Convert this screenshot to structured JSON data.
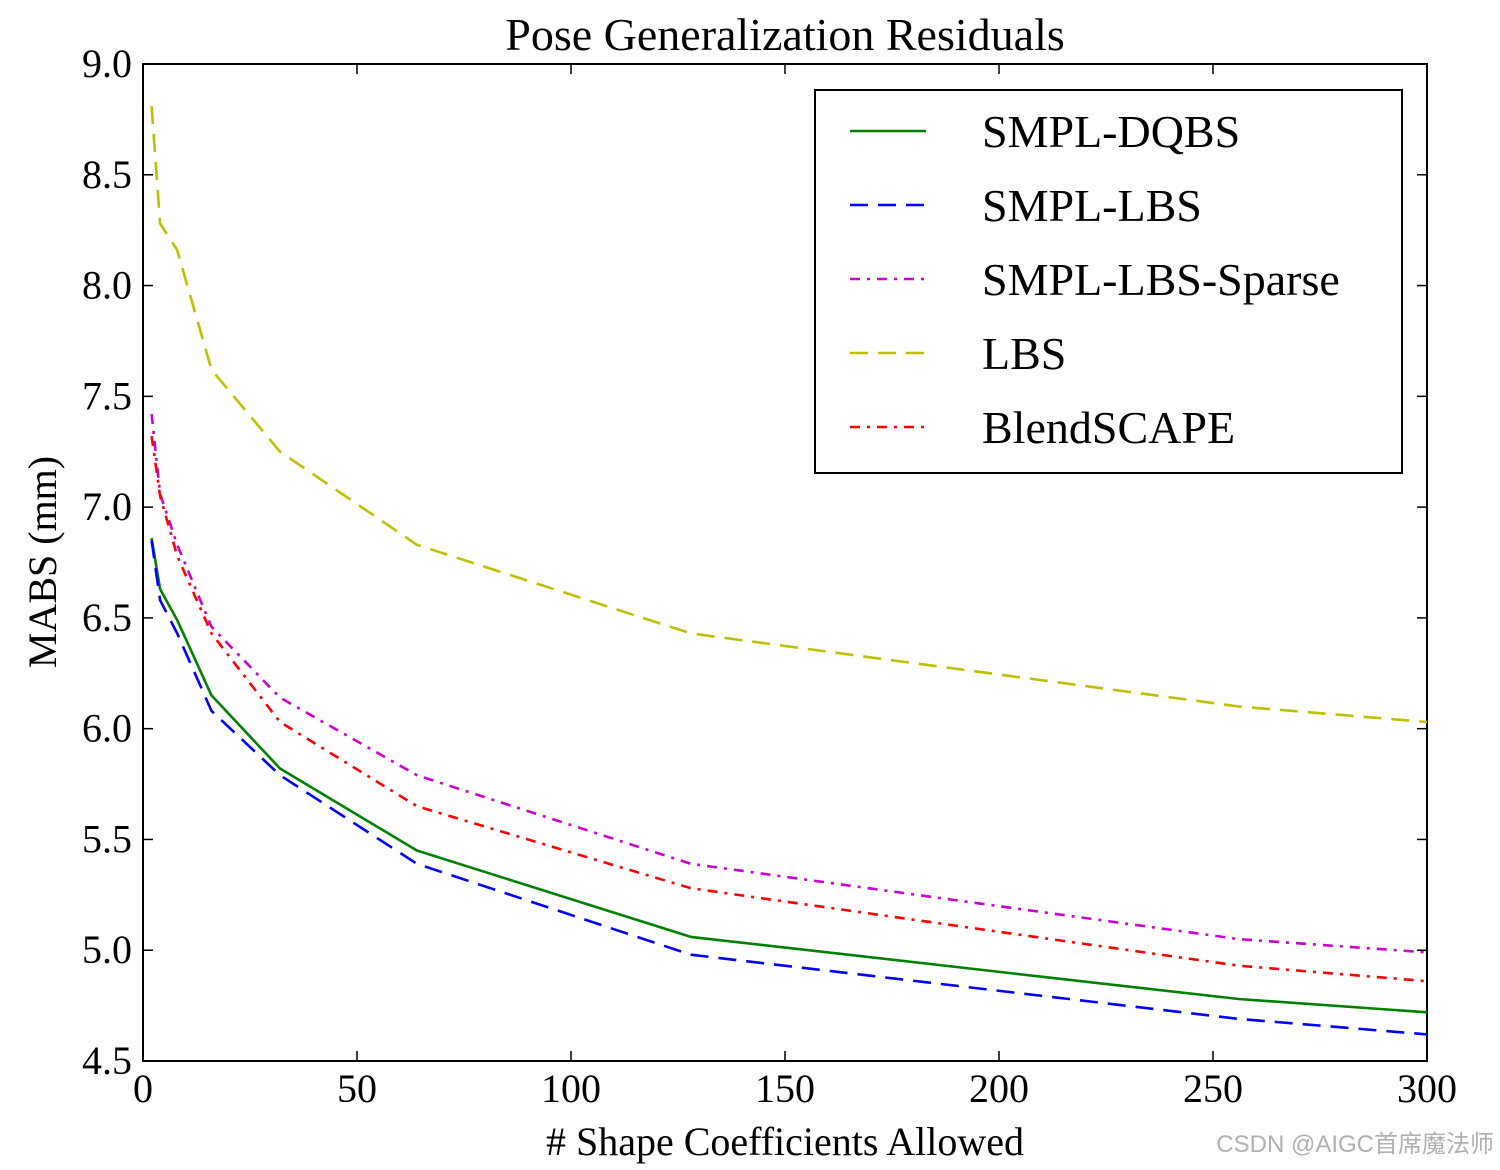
{
  "chart_data": {
    "type": "line",
    "title": "Pose Generalization Residuals",
    "xlabel": "# Shape Coefficients Allowed",
    "ylabel": "MABS (mm)",
    "xlim": [
      0,
      300
    ],
    "ylim": [
      4.5,
      9.0
    ],
    "xticks": [
      0,
      50,
      100,
      150,
      200,
      250,
      300
    ],
    "xtick_labels": [
      "0",
      "50",
      "100",
      "150",
      "200",
      "250",
      "300"
    ],
    "yticks": [
      4.5,
      5.0,
      5.5,
      6.0,
      6.5,
      7.0,
      7.5,
      8.0,
      8.5,
      9.0
    ],
    "ytick_labels": [
      "4.5",
      "5.0",
      "5.5",
      "6.0",
      "6.5",
      "7.0",
      "7.5",
      "8.0",
      "8.5",
      "9.0"
    ],
    "grid": false,
    "legend_position": "top-right",
    "x": [
      2,
      4,
      8,
      16,
      32,
      64,
      128,
      256,
      300
    ],
    "series": [
      {
        "name": "SMPL-DQBS",
        "color": "#008000",
        "style": "solid",
        "values": [
          6.86,
          6.63,
          6.49,
          6.15,
          5.82,
          5.45,
          5.06,
          4.78,
          4.72
        ]
      },
      {
        "name": "SMPL-LBS",
        "color": "#0000ff",
        "style": "dashed",
        "values": [
          6.85,
          6.58,
          6.43,
          6.08,
          5.79,
          5.39,
          4.98,
          4.69,
          4.62
        ]
      },
      {
        "name": "SMPL-LBS-Sparse",
        "color": "#cc00cc",
        "style": "dashdot",
        "values": [
          7.42,
          7.06,
          6.83,
          6.46,
          6.14,
          5.79,
          5.39,
          5.05,
          4.99
        ]
      },
      {
        "name": "LBS",
        "color": "#bfbf00",
        "style": "dashed",
        "values": [
          8.81,
          8.28,
          8.16,
          7.62,
          7.25,
          6.83,
          6.43,
          6.1,
          6.03
        ]
      },
      {
        "name": "BlendSCAPE",
        "color": "#ff0000",
        "style": "dashdot",
        "values": [
          7.32,
          7.05,
          6.78,
          6.43,
          6.03,
          5.65,
          5.28,
          4.93,
          4.86
        ]
      }
    ]
  },
  "watermark": "CSDN @AIGC首席魔法师"
}
